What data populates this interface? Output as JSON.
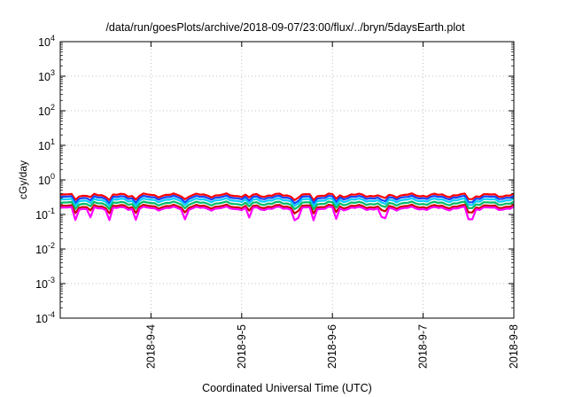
{
  "chart_data": {
    "type": "line",
    "title": "/data/run/goesPlots/archive/2018-09-07/23:00/flux/../bryn/5daysEarth.plot",
    "xlabel": "Coordinated Universal Time (UTC)",
    "ylabel": "cGy/day",
    "yscale": "log",
    "ylim": [
      0.0001,
      10000
    ],
    "xlim": [
      "2018-09-03 00:00",
      "2018-09-08 00:00"
    ],
    "x_ticks": [
      "2018-9-4",
      "2018-9-5",
      "2018-9-6",
      "2018-9-7",
      "2018-9-8"
    ],
    "y_ticks": [
      {
        "base": "10",
        "exp": "4"
      },
      {
        "base": "10",
        "exp": "3"
      },
      {
        "base": "10",
        "exp": "2"
      },
      {
        "base": "10",
        "exp": "1"
      },
      {
        "base": "10",
        "exp": "0"
      },
      {
        "base": "10",
        "exp": "-1"
      },
      {
        "base": "10",
        "exp": "-2"
      },
      {
        "base": "10",
        "exp": "-3"
      },
      {
        "base": "10",
        "exp": "-4"
      }
    ],
    "grid": true,
    "legend": "none",
    "time_step_hours": 1,
    "series": [
      {
        "color": "#ff00ff",
        "level": 0.15,
        "dip_factor": 0.5
      },
      {
        "color": "#cc0000",
        "level": 0.17,
        "dip_factor": 0.7
      },
      {
        "color": "#00bb66",
        "level": 0.21,
        "dip_factor": 0.75
      },
      {
        "color": "#00ccff",
        "level": 0.26,
        "dip_factor": 0.75
      },
      {
        "color": "#1144ff",
        "level": 0.31,
        "dip_factor": 0.75
      },
      {
        "color": "#ff0000",
        "level": 0.36,
        "dip_factor": 0.8
      }
    ],
    "dip_times": [
      "2018-09-03 04:00",
      "2018-09-03 08:00",
      "2018-09-03 13:00",
      "2018-09-03 20:00",
      "2018-09-04 09:00",
      "2018-09-05 02:00",
      "2018-09-05 14:00",
      "2018-09-05 15:00",
      "2018-09-05 19:00",
      "2018-09-06 01:00",
      "2018-09-06 13:00",
      "2018-09-06 14:00",
      "2018-09-07 12:00",
      "2018-09-07 13:00"
    ]
  }
}
